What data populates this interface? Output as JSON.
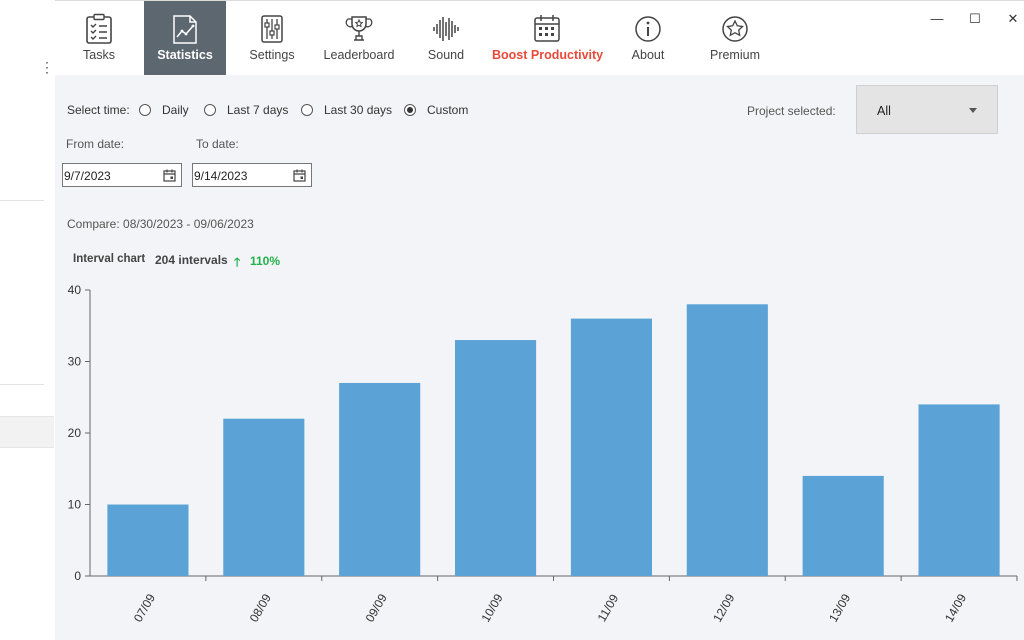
{
  "nav": {
    "items": [
      {
        "id": "tasks",
        "label": "Tasks",
        "icon": "clipboard-checklist-icon"
      },
      {
        "id": "statistics",
        "label": "Statistics",
        "icon": "chart-document-icon"
      },
      {
        "id": "settings",
        "label": "Settings",
        "icon": "sliders-icon"
      },
      {
        "id": "leaderboard",
        "label": "Leaderboard",
        "icon": "trophy-icon"
      },
      {
        "id": "sound",
        "label": "Sound",
        "icon": "soundwave-icon"
      },
      {
        "id": "boost",
        "label": "Boost Productivity",
        "icon": "calendar-icon"
      },
      {
        "id": "about",
        "label": "About",
        "icon": "info-icon"
      },
      {
        "id": "premium",
        "label": "Premium",
        "icon": "star-badge-icon"
      }
    ],
    "active": "statistics"
  },
  "window": {
    "minimize": "—",
    "maximize": "☐",
    "close": "✕"
  },
  "filters": {
    "select_time_label": "Select time:",
    "options": [
      "Daily",
      "Last 7 days",
      "Last 30 days",
      "Custom"
    ],
    "selected": "Custom",
    "project_label": "Project selected:",
    "project_value": "All",
    "from_label": "From date:",
    "to_label": "To date:",
    "from_value": "9/7/2023",
    "to_value": "9/14/2023",
    "compare_text": "Compare: 08/30/2023 - 09/06/2023"
  },
  "summary": {
    "title": "Interval chart",
    "count": "204 intervals",
    "arrow": "🡑",
    "percent": "110%"
  },
  "colors": {
    "bar": "#5ba3d6",
    "active_tab": "#5d6770",
    "boost": "#e84a3a",
    "increase": "#22b24c"
  },
  "chart_data": {
    "type": "bar",
    "categories": [
      "07/09",
      "08/09",
      "09/09",
      "10/09",
      "11/09",
      "12/09",
      "13/09",
      "14/09"
    ],
    "values": [
      10,
      22,
      27,
      33,
      36,
      38,
      14,
      24
    ],
    "yticks": [
      0,
      10,
      20,
      30,
      40
    ],
    "ylim": [
      0,
      40
    ],
    "grid": false,
    "title": "",
    "xlabel": "",
    "ylabel": ""
  }
}
